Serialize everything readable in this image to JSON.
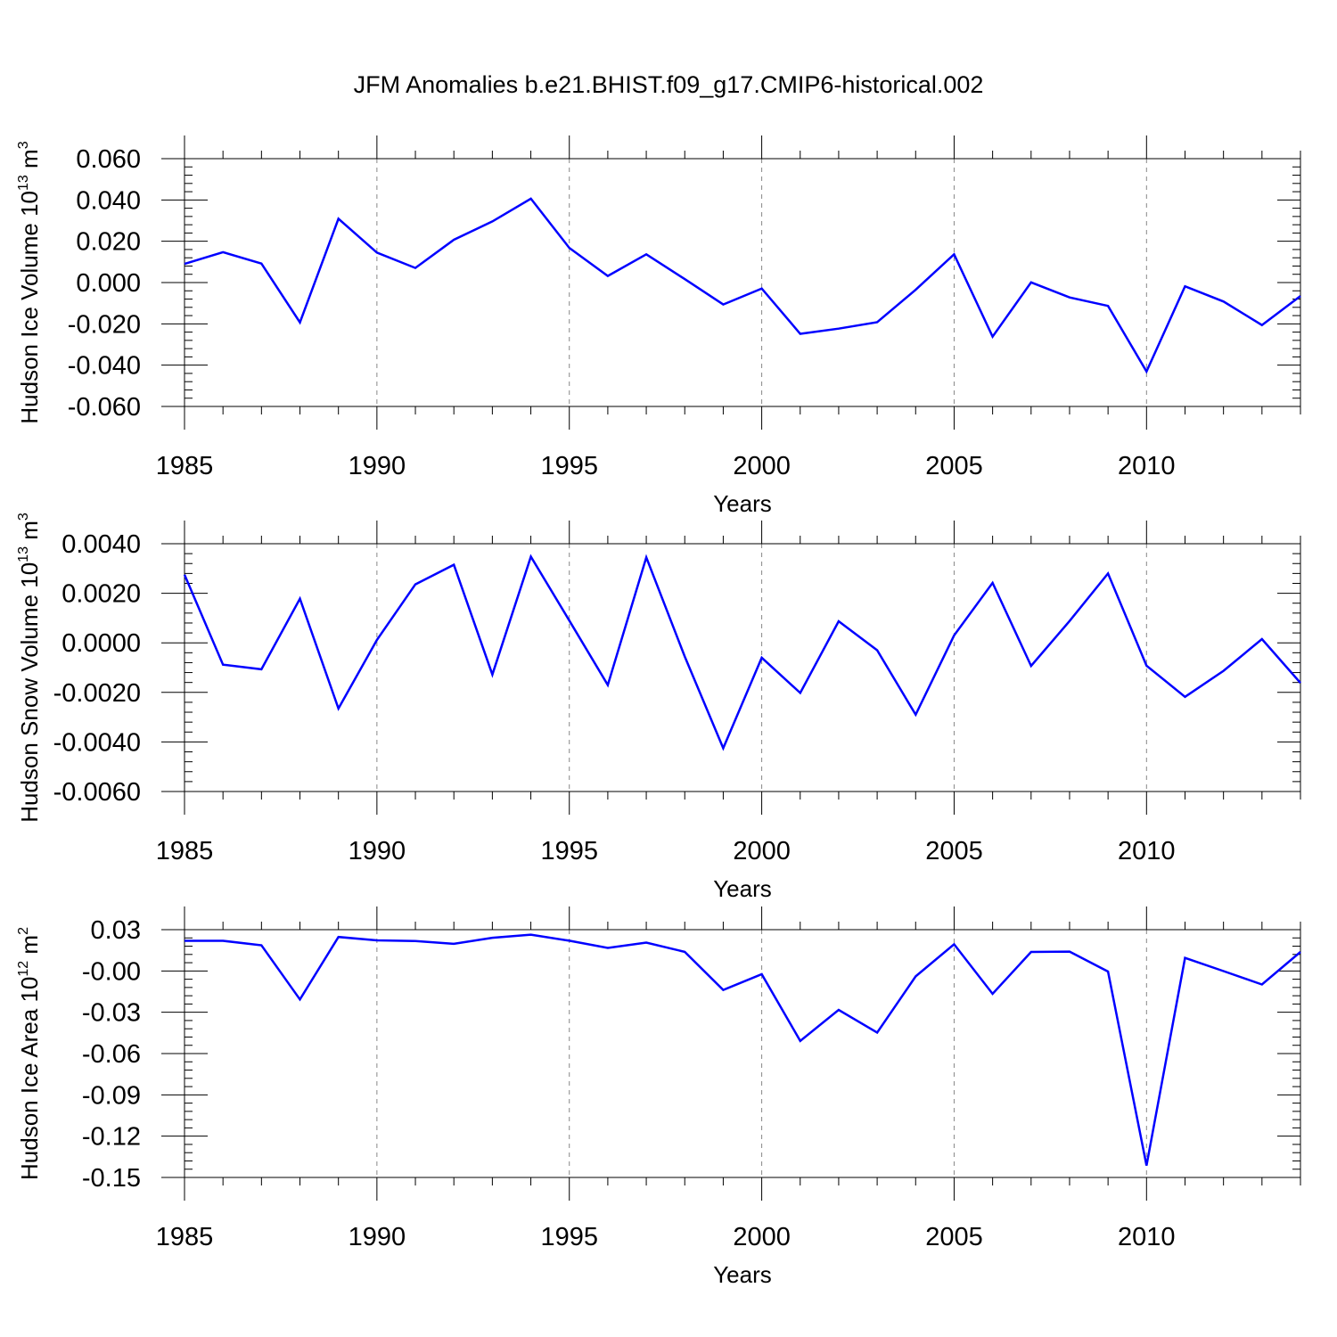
{
  "figure": {
    "title": "JFM Anomalies b.e21.BHIST.f09_g17.CMIP6-historical.002",
    "line_color": "#0000ff",
    "axis_color": "#000000",
    "grid_color": "#888888"
  },
  "chart_data": [
    {
      "type": "line",
      "name": "panel-ice-volume",
      "title": "JFM Anomalies b.e21.BHIST.f09_g17.CMIP6-historical.002",
      "xlabel": "Years",
      "ylabel": {
        "base": "Hudson Ice Volume 10",
        "exp": "13",
        "unit": " m",
        "unit_exp": "3"
      },
      "xlim": [
        1985,
        2014
      ],
      "ylim": [
        -0.06,
        0.06
      ],
      "yticks": [
        0.06,
        0.04,
        0.02,
        0.0,
        -0.02,
        -0.04,
        -0.06
      ],
      "ytick_labels": [
        "0.060",
        "0.040",
        "0.020",
        "0.000",
        "-0.020",
        "-0.040",
        "-0.060"
      ],
      "xticks": [
        1985,
        1990,
        1995,
        2000,
        2005,
        2010
      ],
      "xtick_labels": [
        "1985",
        "1990",
        "1995",
        "2000",
        "2005",
        "2010"
      ],
      "grid_x": [
        1990,
        1995,
        2000,
        2005,
        2010
      ],
      "x": [
        1985,
        1986,
        1987,
        1988,
        1989,
        1990,
        1991,
        1992,
        1993,
        1994,
        1995,
        1996,
        1997,
        1998,
        1999,
        2000,
        2001,
        2002,
        2003,
        2004,
        2005,
        2006,
        2007,
        2008,
        2009,
        2010,
        2011,
        2012,
        2013,
        2014
      ],
      "series": [
        {
          "name": "Hudson Ice Volume",
          "values": [
            0.009,
            0.0147,
            0.0092,
            -0.0193,
            0.0309,
            0.0145,
            0.0071,
            0.0207,
            0.0296,
            0.0406,
            0.0168,
            0.0032,
            0.0137,
            0.0017,
            -0.0106,
            -0.0029,
            -0.0248,
            -0.0223,
            -0.0192,
            -0.0035,
            0.0137,
            -0.0262,
            0.0001,
            -0.0072,
            -0.0113,
            -0.0431,
            -0.0018,
            -0.0092,
            -0.0206,
            -0.0065
          ]
        }
      ]
    },
    {
      "type": "line",
      "name": "panel-snow-volume",
      "xlabel": "Years",
      "ylabel": {
        "base": "Hudson Snow Volume 10",
        "exp": "13",
        "unit": " m",
        "unit_exp": "3"
      },
      "xlim": [
        1985,
        2014
      ],
      "ylim": [
        -0.006,
        0.004
      ],
      "yticks": [
        0.004,
        0.002,
        0.0,
        -0.002,
        -0.004,
        -0.006
      ],
      "ytick_labels": [
        "0.0040",
        "0.0020",
        "0.0000",
        "-0.0020",
        "-0.0040",
        "-0.0060"
      ],
      "xticks": [
        1985,
        1990,
        1995,
        2000,
        2005,
        2010
      ],
      "xtick_labels": [
        "1985",
        "1990",
        "1995",
        "2000",
        "2005",
        "2010"
      ],
      "grid_x": [
        1990,
        1995,
        2000,
        2005,
        2010
      ],
      "x": [
        1985,
        1986,
        1987,
        1988,
        1989,
        1990,
        1991,
        1992,
        1993,
        1994,
        1995,
        1996,
        1997,
        1998,
        1999,
        2000,
        2001,
        2002,
        2003,
        2004,
        2005,
        2006,
        2007,
        2008,
        2009,
        2010,
        2011,
        2012,
        2013,
        2014
      ],
      "series": [
        {
          "name": "Hudson Snow Volume",
          "values": [
            0.00275,
            -0.00088,
            -0.00107,
            0.00178,
            -0.00265,
            0.00012,
            0.00236,
            0.00315,
            -0.00128,
            0.00348,
            0.0009,
            -0.0017,
            0.00345,
            -0.00055,
            -0.00425,
            -0.0006,
            -0.00202,
            0.00087,
            -0.0003,
            -0.0029,
            0.0003,
            0.00242,
            -0.00093,
            0.00088,
            0.0028,
            -0.00092,
            -0.00218,
            -0.00113,
            0.00015,
            -0.00162
          ]
        }
      ]
    },
    {
      "type": "line",
      "name": "panel-ice-area",
      "xlabel": "Years",
      "ylabel": {
        "base": "Hudson Ice Area 10",
        "exp": "12",
        "unit": " m",
        "unit_exp": "2"
      },
      "xlim": [
        1985,
        2014
      ],
      "ylim": [
        -0.15,
        0.03
      ],
      "yticks": [
        0.03,
        0.0,
        -0.03,
        -0.06,
        -0.09,
        -0.12,
        -0.15
      ],
      "ytick_labels": [
        "0.03",
        "-0.00",
        "-0.03",
        "-0.06",
        "-0.09",
        "-0.12",
        "-0.15"
      ],
      "xticks": [
        1985,
        1990,
        1995,
        2000,
        2005,
        2010
      ],
      "xtick_labels": [
        "1985",
        "1990",
        "1995",
        "2000",
        "2005",
        "2010"
      ],
      "grid_x": [
        1990,
        1995,
        2000,
        2005,
        2010
      ],
      "x": [
        1985,
        1986,
        1987,
        1988,
        1989,
        1990,
        1991,
        1992,
        1993,
        1994,
        1995,
        1996,
        1997,
        1998,
        1999,
        2000,
        2001,
        2002,
        2003,
        2004,
        2005,
        2006,
        2007,
        2008,
        2009,
        2010,
        2011,
        2012,
        2013,
        2014
      ],
      "series": [
        {
          "name": "Hudson Ice Area",
          "values": [
            0.0219,
            0.0219,
            0.0187,
            -0.0207,
            0.0247,
            0.0222,
            0.0218,
            0.0197,
            0.0241,
            0.0264,
            0.022,
            0.0167,
            0.0206,
            0.0139,
            -0.0138,
            -0.0024,
            -0.0508,
            -0.0283,
            -0.0448,
            -0.0039,
            0.0194,
            -0.0166,
            0.0138,
            0.0141,
            -0.0004,
            -0.1413,
            0.0095,
            -0.0001,
            -0.0098,
            0.0138
          ]
        }
      ]
    }
  ]
}
